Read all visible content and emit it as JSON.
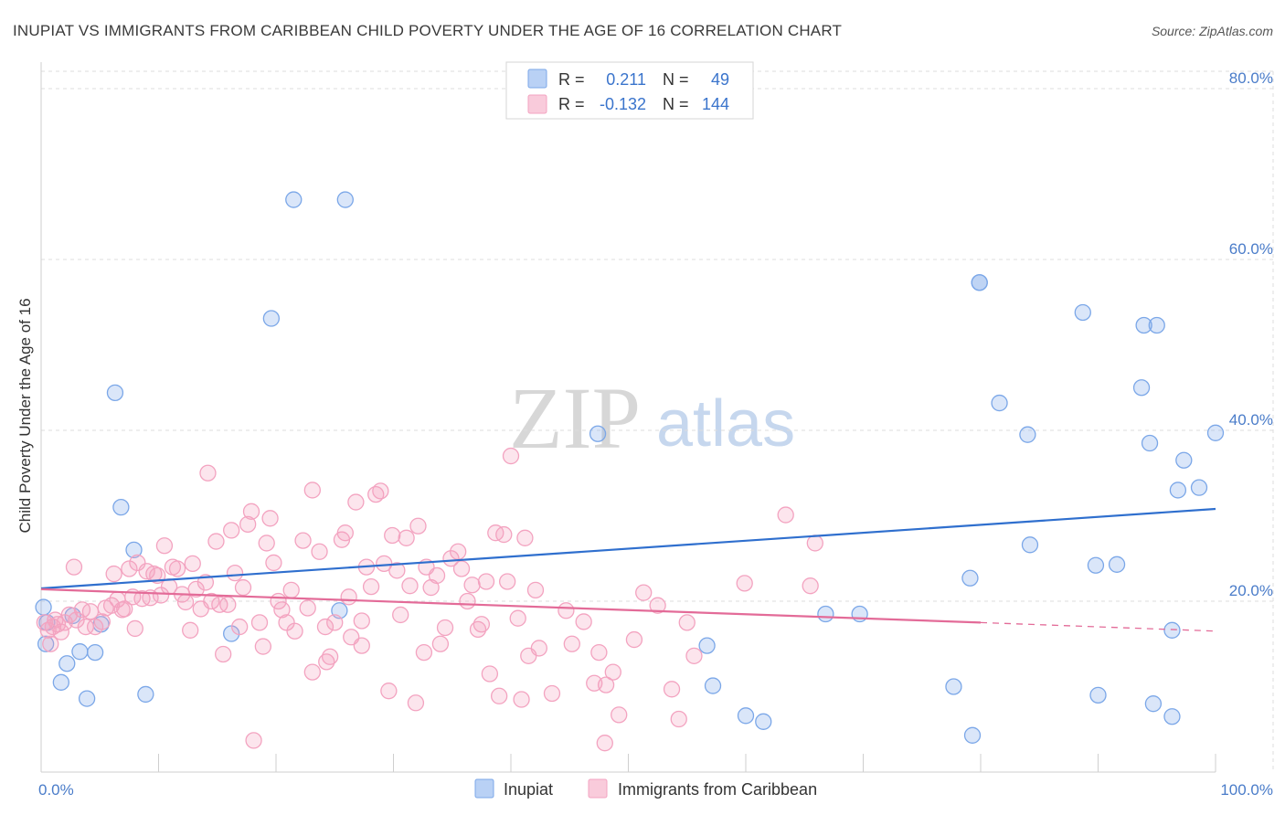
{
  "chart_data": {
    "type": "scatter",
    "title": "INUPIAT VS IMMIGRANTS FROM CARIBBEAN CHILD POVERTY UNDER THE AGE OF 16 CORRELATION CHART",
    "source": "Source: ZipAtlas.com",
    "ylabel": "Child Poverty Under the Age of 16",
    "xlim": [
      0,
      100
    ],
    "ylim": [
      0,
      80
    ],
    "x_tick_labels": [
      "0.0%",
      "100.0%"
    ],
    "y_ticks": [
      20,
      40,
      60,
      80
    ],
    "y_tick_labels": [
      "20.0%",
      "40.0%",
      "60.0%",
      "80.0%"
    ],
    "grid": true,
    "legend_position": "top-center",
    "watermark": {
      "left": "ZIP",
      "right": "atlas"
    },
    "legend": {
      "rows": [
        {
          "r_label": "R =",
          "r_value": "0.211",
          "n_label": "N =",
          "n_value": "49"
        },
        {
          "r_label": "R =",
          "r_value": "-0.132",
          "n_label": "N =",
          "n_value": "144"
        }
      ]
    },
    "series": [
      {
        "name": "Inupiat",
        "color": "#7ba7e8",
        "line_color": "#2f6fce",
        "trend": {
          "x": [
            0,
            100
          ],
          "y": [
            21.5,
            30.8
          ]
        },
        "points": [
          [
            0.2,
            19.3
          ],
          [
            0.4,
            15.0
          ],
          [
            1.7,
            10.5
          ],
          [
            2.2,
            12.7
          ],
          [
            2.7,
            18.3
          ],
          [
            3.3,
            14.1
          ],
          [
            3.9,
            8.6
          ],
          [
            4.6,
            14.0
          ],
          [
            5.1,
            17.3
          ],
          [
            6.3,
            44.4
          ],
          [
            6.8,
            31.0
          ],
          [
            7.9,
            26.0
          ],
          [
            8.9,
            9.1
          ],
          [
            16.2,
            16.2
          ],
          [
            19.6,
            53.1
          ],
          [
            21.5,
            67.0
          ],
          [
            25.9,
            67.0
          ],
          [
            25.4,
            18.9
          ],
          [
            47.4,
            39.6
          ],
          [
            56.7,
            14.8
          ],
          [
            57.2,
            10.1
          ],
          [
            60.0,
            6.6
          ],
          [
            61.5,
            5.9
          ],
          [
            66.8,
            18.5
          ],
          [
            69.7,
            18.5
          ],
          [
            77.7,
            10.0
          ],
          [
            79.3,
            4.3
          ],
          [
            79.9,
            57.3
          ],
          [
            79.9,
            57.3
          ],
          [
            79.1,
            22.7
          ],
          [
            81.6,
            43.2
          ],
          [
            84.0,
            39.5
          ],
          [
            84.2,
            26.6
          ],
          [
            88.7,
            53.8
          ],
          [
            89.8,
            24.2
          ],
          [
            90.0,
            9.0
          ],
          [
            91.6,
            24.3
          ],
          [
            93.7,
            45.0
          ],
          [
            93.9,
            52.3
          ],
          [
            95.0,
            52.3
          ],
          [
            94.7,
            8.0
          ],
          [
            94.4,
            38.5
          ],
          [
            96.3,
            16.6
          ],
          [
            96.3,
            6.5
          ],
          [
            96.8,
            33.0
          ],
          [
            97.3,
            36.5
          ],
          [
            98.6,
            33.3
          ],
          [
            100.0,
            39.7
          ],
          [
            0.5,
            17.5
          ]
        ]
      },
      {
        "name": "Immigrants from Caribbean",
        "color": "#f3a3c0",
        "line_color": "#e36b98",
        "trend": {
          "x": [
            0,
            80
          ],
          "y": [
            21.4,
            17.5
          ]
        },
        "trend_dashed": {
          "x": [
            80,
            100
          ],
          "y": [
            17.5,
            16.5
          ]
        },
        "points": [
          [
            0.3,
            17.5
          ],
          [
            0.6,
            16.6
          ],
          [
            0.8,
            15.0
          ],
          [
            1.0,
            17.0
          ],
          [
            1.2,
            17.8
          ],
          [
            1.4,
            17.3
          ],
          [
            1.7,
            16.4
          ],
          [
            2.0,
            17.5
          ],
          [
            2.4,
            18.4
          ],
          [
            2.8,
            24.0
          ],
          [
            3.0,
            17.8
          ],
          [
            3.5,
            19.0
          ],
          [
            3.8,
            17.0
          ],
          [
            4.2,
            18.8
          ],
          [
            4.6,
            17.0
          ],
          [
            5.2,
            17.6
          ],
          [
            5.5,
            19.2
          ],
          [
            6.0,
            19.5
          ],
          [
            6.2,
            23.2
          ],
          [
            6.5,
            20.2
          ],
          [
            6.9,
            19.0
          ],
          [
            7.1,
            19.1
          ],
          [
            7.5,
            23.8
          ],
          [
            7.8,
            20.5
          ],
          [
            8.0,
            16.8
          ],
          [
            8.2,
            24.5
          ],
          [
            8.6,
            20.3
          ],
          [
            9.0,
            23.5
          ],
          [
            9.3,
            20.4
          ],
          [
            9.6,
            23.2
          ],
          [
            9.9,
            23.0
          ],
          [
            10.2,
            20.7
          ],
          [
            10.5,
            26.5
          ],
          [
            10.9,
            21.7
          ],
          [
            11.2,
            24.0
          ],
          [
            11.6,
            23.8
          ],
          [
            12.0,
            20.8
          ],
          [
            12.3,
            19.9
          ],
          [
            12.7,
            16.6
          ],
          [
            12.9,
            24.4
          ],
          [
            13.2,
            21.4
          ],
          [
            13.6,
            19.1
          ],
          [
            14.0,
            22.2
          ],
          [
            14.2,
            35.0
          ],
          [
            14.5,
            20.0
          ],
          [
            14.9,
            27.0
          ],
          [
            15.2,
            19.6
          ],
          [
            15.5,
            13.8
          ],
          [
            15.9,
            19.6
          ],
          [
            16.2,
            28.3
          ],
          [
            16.5,
            23.3
          ],
          [
            16.9,
            17.0
          ],
          [
            17.2,
            21.6
          ],
          [
            17.6,
            29.0
          ],
          [
            17.9,
            30.5
          ],
          [
            18.1,
            3.7
          ],
          [
            18.6,
            17.5
          ],
          [
            18.9,
            14.7
          ],
          [
            19.2,
            26.8
          ],
          [
            19.5,
            29.7
          ],
          [
            19.8,
            24.5
          ],
          [
            20.2,
            20.0
          ],
          [
            20.5,
            19.0
          ],
          [
            20.9,
            17.5
          ],
          [
            21.3,
            21.3
          ],
          [
            21.6,
            16.5
          ],
          [
            22.3,
            27.1
          ],
          [
            22.7,
            19.2
          ],
          [
            23.1,
            11.7
          ],
          [
            23.1,
            33.0
          ],
          [
            23.7,
            25.8
          ],
          [
            24.2,
            17.0
          ],
          [
            24.3,
            12.9
          ],
          [
            24.6,
            13.5
          ],
          [
            25.0,
            17.5
          ],
          [
            25.6,
            27.2
          ],
          [
            25.9,
            28.0
          ],
          [
            26.2,
            20.5
          ],
          [
            26.4,
            15.8
          ],
          [
            26.8,
            31.6
          ],
          [
            27.3,
            17.7
          ],
          [
            27.3,
            14.8
          ],
          [
            27.7,
            24.0
          ],
          [
            28.1,
            21.7
          ],
          [
            28.5,
            32.5
          ],
          [
            28.9,
            32.9
          ],
          [
            29.2,
            24.4
          ],
          [
            29.6,
            9.5
          ],
          [
            29.9,
            27.7
          ],
          [
            30.3,
            23.6
          ],
          [
            30.6,
            18.4
          ],
          [
            31.1,
            27.4
          ],
          [
            31.4,
            21.8
          ],
          [
            31.9,
            8.1
          ],
          [
            32.1,
            28.8
          ],
          [
            32.6,
            14.0
          ],
          [
            32.8,
            24.0
          ],
          [
            33.2,
            21.6
          ],
          [
            33.7,
            23.0
          ],
          [
            34.0,
            15.0
          ],
          [
            34.4,
            16.9
          ],
          [
            34.9,
            25.0
          ],
          [
            35.5,
            25.8
          ],
          [
            35.8,
            23.8
          ],
          [
            36.3,
            20.0
          ],
          [
            36.7,
            21.9
          ],
          [
            37.2,
            16.7
          ],
          [
            37.5,
            17.3
          ],
          [
            37.9,
            22.3
          ],
          [
            38.2,
            11.5
          ],
          [
            38.7,
            28.0
          ],
          [
            39.0,
            8.9
          ],
          [
            39.4,
            27.8
          ],
          [
            39.7,
            22.3
          ],
          [
            40.0,
            37.0
          ],
          [
            40.6,
            18.0
          ],
          [
            40.9,
            8.5
          ],
          [
            41.2,
            27.4
          ],
          [
            41.5,
            13.6
          ],
          [
            42.1,
            21.3
          ],
          [
            42.4,
            14.5
          ],
          [
            43.5,
            9.2
          ],
          [
            44.7,
            18.9
          ],
          [
            45.2,
            15.0
          ],
          [
            46.2,
            17.6
          ],
          [
            47.5,
            14.0
          ],
          [
            48.1,
            10.2
          ],
          [
            48.7,
            11.7
          ],
          [
            49.2,
            6.7
          ],
          [
            50.5,
            15.5
          ],
          [
            51.3,
            21.0
          ],
          [
            52.5,
            19.5
          ],
          [
            53.7,
            9.7
          ],
          [
            54.3,
            6.2
          ],
          [
            55.0,
            17.5
          ],
          [
            55.6,
            13.6
          ],
          [
            59.9,
            22.1
          ],
          [
            63.4,
            30.1
          ],
          [
            65.5,
            21.8
          ],
          [
            65.9,
            26.8
          ],
          [
            48.0,
            3.4
          ],
          [
            47.1,
            10.4
          ]
        ]
      }
    ],
    "bottom_legend": [
      "Inupiat",
      "Immigrants from Caribbean"
    ]
  }
}
